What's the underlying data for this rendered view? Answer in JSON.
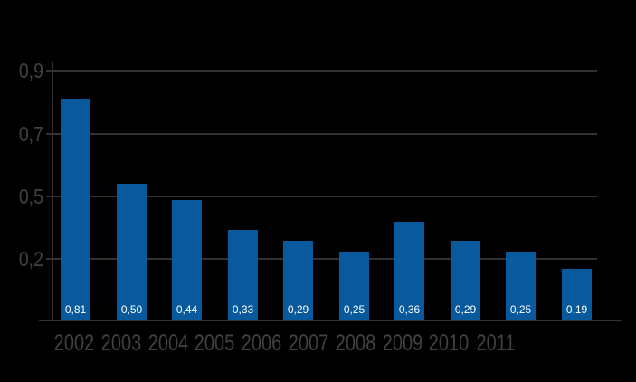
{
  "chart_data": {
    "type": "bar",
    "categories": [
      "2002",
      "2003",
      "2004",
      "2005",
      "2006",
      "2007",
      "2008",
      "2009",
      "2010",
      "2011"
    ],
    "values": [
      0.81,
      0.5,
      0.44,
      0.33,
      0.29,
      0.25,
      0.36,
      0.29,
      0.25,
      0.19
    ],
    "value_labels": [
      "0,81",
      "0,50",
      "0,44",
      "0,33",
      "0,29",
      "0,25",
      "0,36",
      "0,29",
      "0,25",
      "0,19"
    ],
    "y_tick_labels": [
      "0,9",
      "0,7",
      "0,5",
      "0,2"
    ],
    "title": "",
    "xlabel": "",
    "ylabel": "",
    "ylim": [
      0,
      0.9
    ],
    "grid": true,
    "legend": false,
    "colors": {
      "background": "#000000",
      "bar": "#085a9d",
      "grid": "#323234",
      "axis_text": "#414143",
      "value_text": "#ffffff"
    }
  }
}
